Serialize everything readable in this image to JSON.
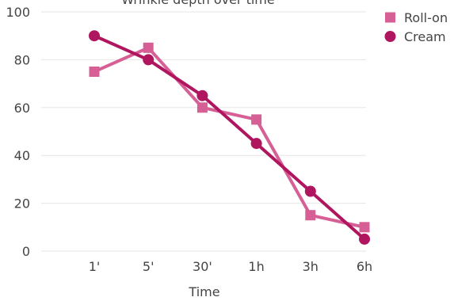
{
  "chart_data": {
    "type": "line",
    "title": "Wrinkle depth over time",
    "xlabel": "Time",
    "ylabel": "",
    "categories": [
      "1'",
      "5'",
      "30'",
      "1h",
      "3h",
      "6h"
    ],
    "ylim": [
      0,
      100
    ],
    "yticks": [
      0,
      20,
      40,
      60,
      80,
      100
    ],
    "grid": true,
    "legend_position": "top-right",
    "series": [
      {
        "name": "Roll-on",
        "marker": "square",
        "color": "#d65f95",
        "values": [
          75,
          85,
          60,
          55,
          15,
          10
        ]
      },
      {
        "name": "Cream",
        "marker": "circle",
        "color": "#b0155f",
        "values": [
          90,
          80,
          65,
          45,
          25,
          5
        ]
      }
    ]
  }
}
